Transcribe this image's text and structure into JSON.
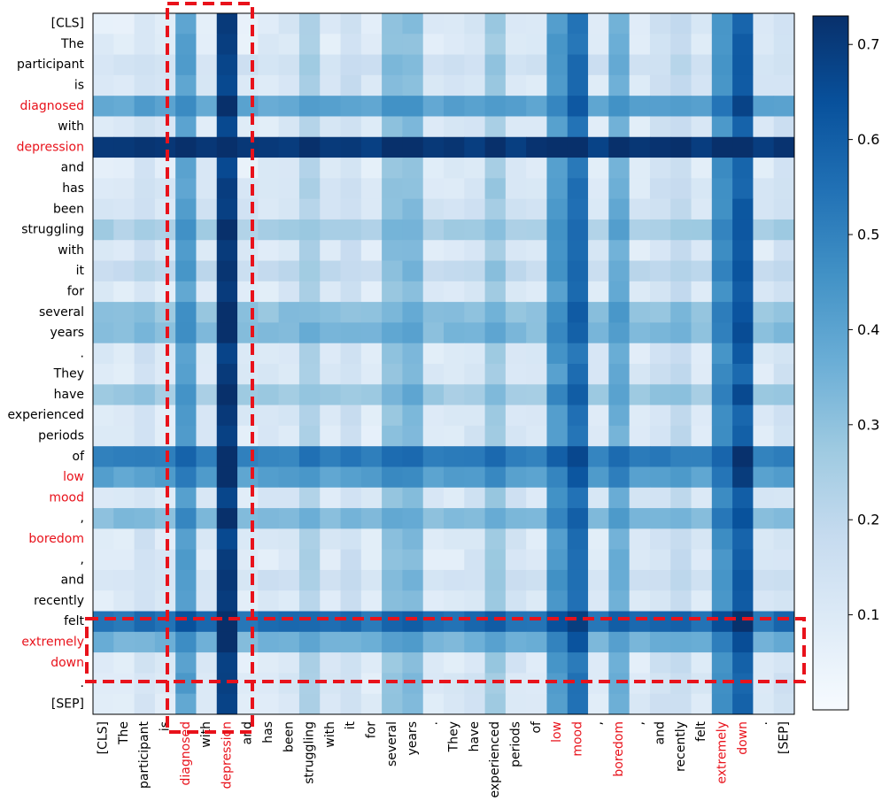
{
  "chart_data": {
    "type": "heatmap",
    "title": "",
    "tokens": [
      "[CLS]",
      "The",
      "participant",
      "is",
      "diagnosed",
      "with",
      "depression",
      "and",
      "has",
      "been",
      "struggling",
      "with",
      "it",
      "for",
      "several",
      "years",
      ".",
      "They",
      "have",
      "experienced",
      "periods",
      "of",
      "low",
      "mood",
      ",",
      "boredom",
      ",",
      "and",
      "recently",
      "felt",
      "extremely",
      "down",
      ".",
      "[SEP]"
    ],
    "highlighted_tokens": [
      "diagnosed",
      "depression",
      "low",
      "mood",
      "boredom",
      "extremely",
      "down"
    ],
    "highlighted_indices": [
      4,
      6,
      22,
      23,
      25,
      30,
      31
    ],
    "x_labels": [
      "[CLS]",
      "The",
      "participant",
      "is",
      "diagnosed",
      "with",
      "depression",
      "and",
      "has",
      "been",
      "struggling",
      "with",
      "it",
      "for",
      "several",
      "years",
      ".",
      "They",
      "have",
      "experienced",
      "periods",
      "of",
      "low",
      "mood",
      ",",
      "boredom",
      ",",
      "and",
      "recently",
      "felt",
      "extremely",
      "down",
      ".",
      "[SEP]"
    ],
    "y_labels": [
      "[CLS]",
      "The",
      "participant",
      "is",
      "diagnosed",
      "with",
      "depression",
      "and",
      "has",
      "been",
      "struggling",
      "with",
      "it",
      "for",
      "several",
      "years",
      ".",
      "They",
      "have",
      "experienced",
      "periods",
      "of",
      "low",
      "mood",
      ",",
      "boredom",
      ",",
      "and",
      "recently",
      "felt",
      "extremely",
      "down",
      ".",
      "[SEP]"
    ],
    "colorbar": {
      "colormap": "Blues",
      "min": 0.0,
      "max": 0.73,
      "ticks": [
        0.1,
        0.2,
        0.3,
        0.4,
        0.5,
        0.6,
        0.7
      ],
      "tick_labels": [
        "0.1",
        "0.2",
        "0.3",
        "0.4",
        "0.5",
        "0.6",
        "0.7"
      ]
    },
    "row_weights": [
      0.03,
      0.02,
      0.1,
      0.06,
      0.38,
      0.05,
      0.72,
      0.03,
      0.06,
      0.08,
      0.22,
      0.05,
      0.15,
      0.04,
      0.27,
      0.3,
      0.05,
      0.05,
      0.24,
      0.05,
      0.04,
      0.5,
      0.4,
      0.06,
      0.3,
      0.05,
      0.03,
      0.1,
      0.04,
      0.55,
      0.33,
      0.03,
      0.05,
      0.04
    ],
    "col_weights": [
      0.04,
      0.02,
      0.1,
      0.05,
      0.4,
      0.05,
      0.7,
      0.03,
      0.05,
      0.07,
      0.2,
      0.05,
      0.12,
      0.04,
      0.28,
      0.3,
      0.04,
      0.05,
      0.08,
      0.24,
      0.08,
      0.05,
      0.42,
      0.55,
      0.05,
      0.35,
      0.05,
      0.1,
      0.15,
      0.05,
      0.45,
      0.6,
      0.05,
      0.1
    ],
    "annotations": [
      {
        "type": "dashed-box",
        "color": "#e8121b",
        "covers_columns": [
          "diagnosed",
          "with",
          "depression"
        ],
        "spans": "all rows"
      },
      {
        "type": "dashed-box",
        "color": "#e8121b",
        "covers_rows": [
          "felt",
          "extremely",
          "down",
          "."
        ],
        "spans": "all columns"
      }
    ]
  },
  "colors": {
    "highlight_text": "#e8121b",
    "normal_text": "#000000",
    "annotation": "#e8121b"
  }
}
